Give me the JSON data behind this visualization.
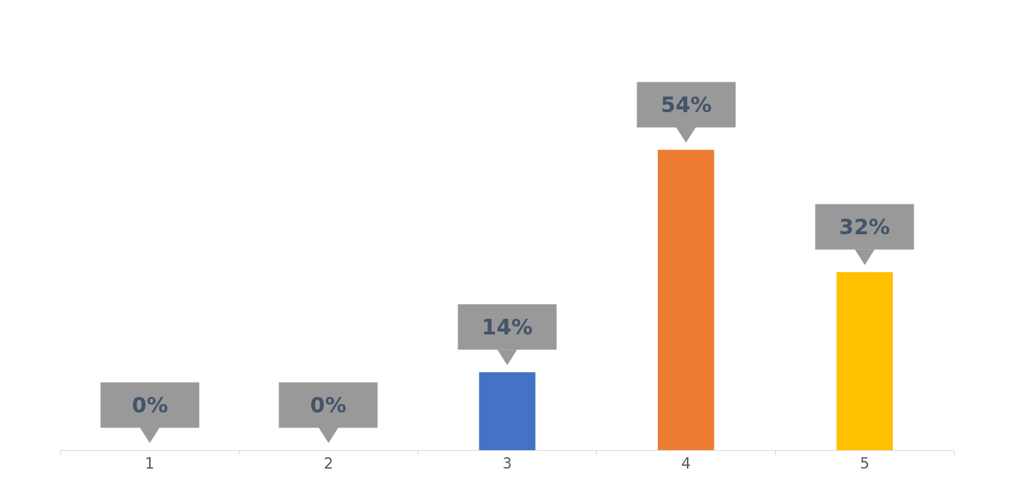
{
  "chart_data": {
    "type": "bar",
    "categories": [
      "1",
      "2",
      "3",
      "4",
      "5"
    ],
    "values": [
      0,
      0,
      14,
      54,
      32
    ],
    "colors": [
      "#4472c4",
      "#4472c4",
      "#4472c4",
      "#ed7d31",
      "#ffc000"
    ],
    "value_labels": [
      "0%",
      "0%",
      "14%",
      "54%",
      "32%"
    ]
  }
}
